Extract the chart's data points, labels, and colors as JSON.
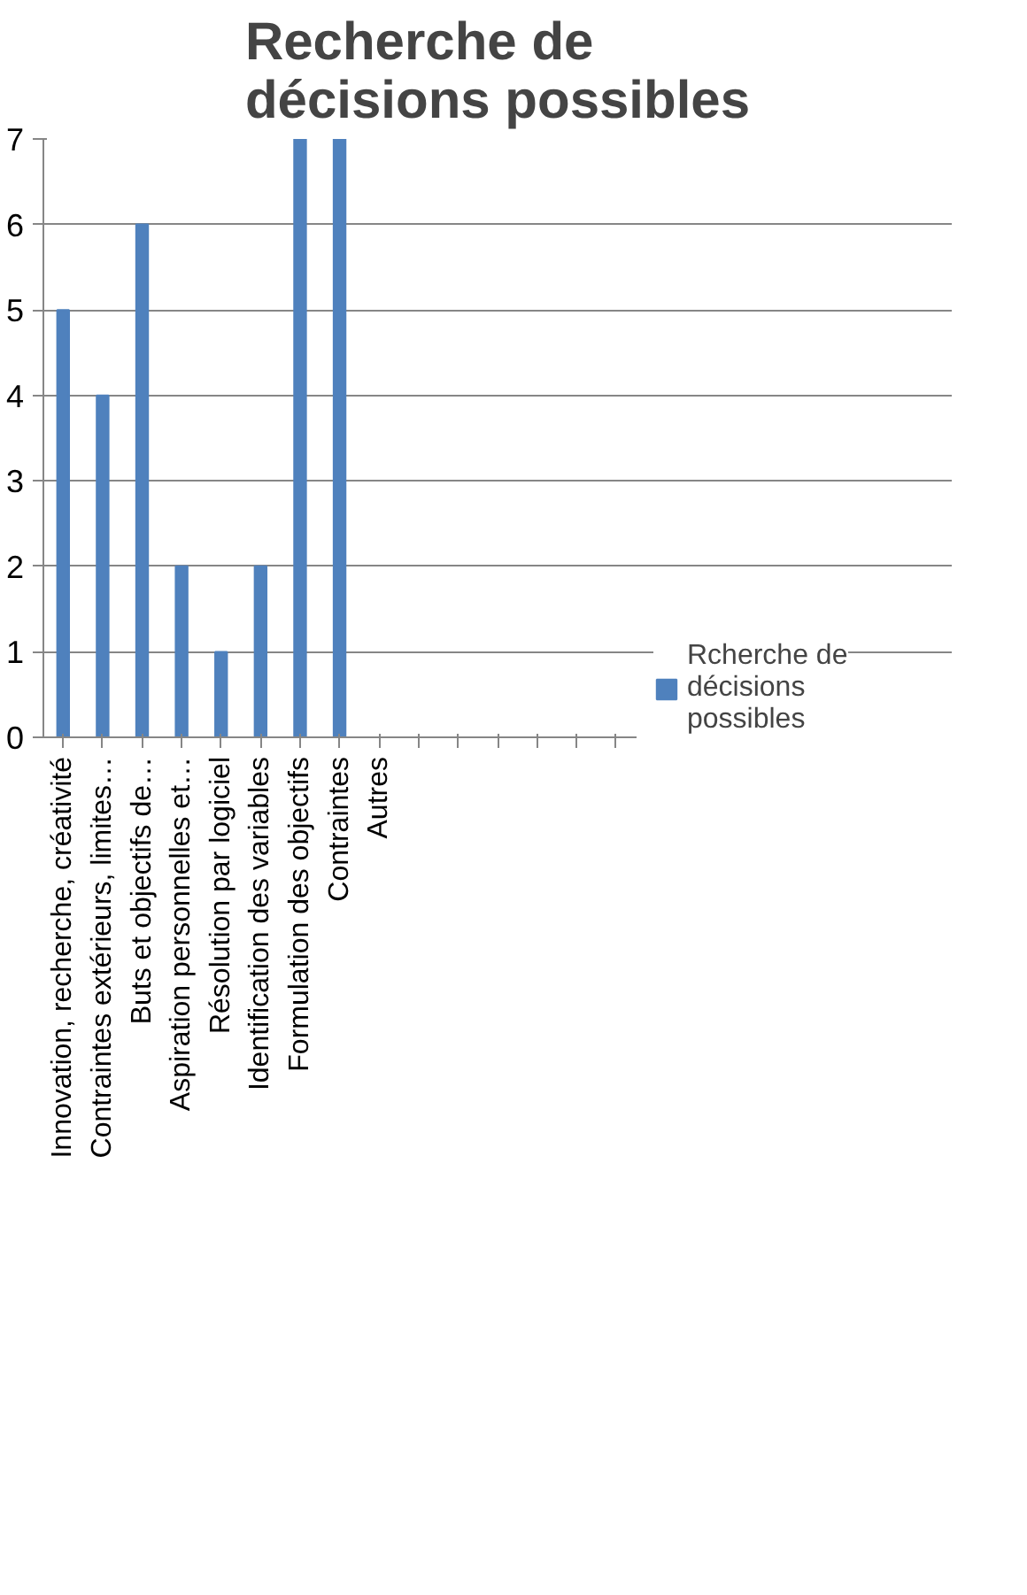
{
  "chart_data": {
    "type": "bar",
    "title": "Recherche de décisions possibles",
    "categories": [
      "Innovation, recherche, créativité",
      "Contraintes extérieurs, limites…",
      "Buts et objectifs de…",
      "Aspiration personnelles et…",
      "Résolution par logiciel",
      "Identification des variables",
      "Formulation des objectifs",
      "Contraintes",
      "Autres",
      null,
      null,
      null,
      null,
      null,
      null
    ],
    "series": [
      {
        "name": "Rcherche de décisions possibles",
        "color": "#4f81bd",
        "values": [
          5,
          4,
          6,
          2,
          1,
          2,
          7,
          7,
          0,
          null,
          null,
          null,
          null,
          null,
          null
        ]
      }
    ],
    "ylim": [
      0,
      7
    ],
    "yticks": [
      0,
      1,
      2,
      3,
      4,
      5,
      6,
      7
    ],
    "grid": "y",
    "legend": "right"
  }
}
